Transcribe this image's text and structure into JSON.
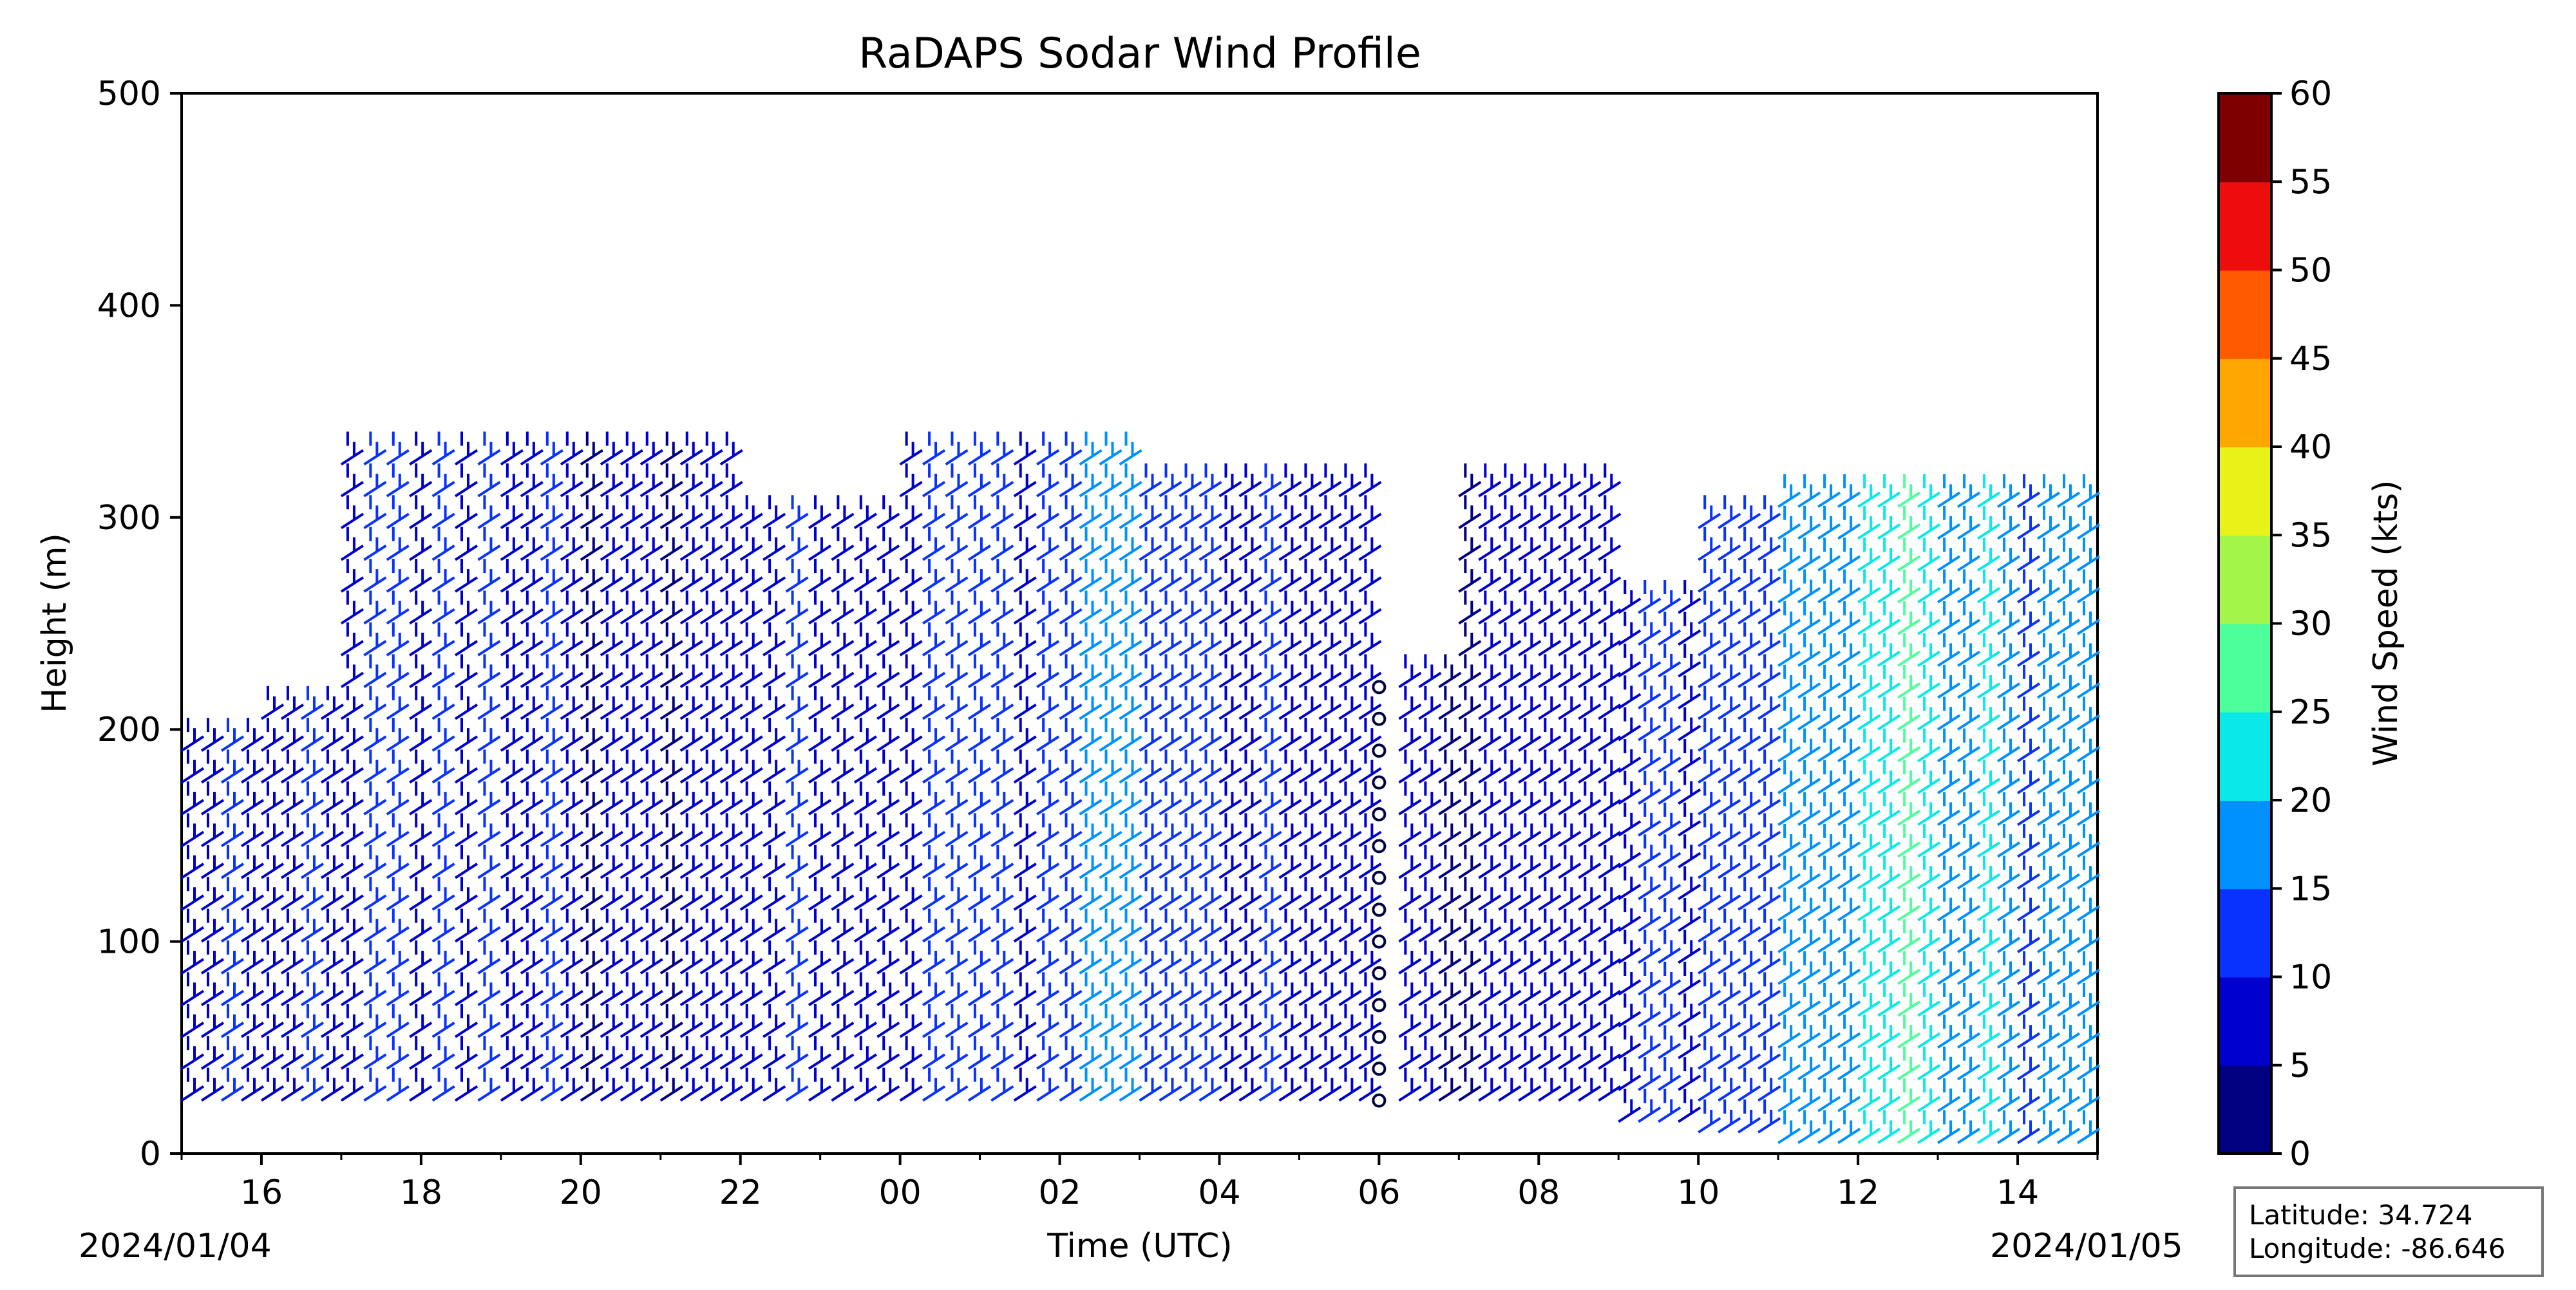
{
  "chart_data": {
    "type": "scatter",
    "title": "RaDAPS Sodar Wind Profile",
    "xlabel": "Time (UTC)",
    "ylabel": "Height (m)",
    "xlim": [
      "2024-01-04 15:00",
      "2024-01-05 15:00"
    ],
    "ylim": [
      0,
      500
    ],
    "x_tick_labels": [
      "16",
      "18",
      "20",
      "22",
      "00",
      "02",
      "04",
      "06",
      "08",
      "10",
      "12",
      "14"
    ],
    "y_ticks": [
      0,
      100,
      200,
      300,
      400,
      500
    ],
    "start_date_label": "2024/01/04",
    "end_date_label": "2024/01/05",
    "colorbar": {
      "label": "Wind Speed (kts)",
      "ticks": [
        0,
        5,
        10,
        15,
        20,
        25,
        30,
        35,
        40,
        45,
        50,
        55,
        60
      ],
      "colors": [
        "#000080",
        "#0000cd",
        "#0a32ff",
        "#0090ff",
        "#0ae8e8",
        "#4dff9a",
        "#a4f54a",
        "#e8f218",
        "#ffa600",
        "#ff5a00",
        "#ee0d0d",
        "#7f0000"
      ]
    },
    "location": {
      "latitude_label": "Latitude: 34.724",
      "longitude_label": "Longitude: -86.646"
    },
    "grid": false,
    "legend": "none",
    "series": [
      {
        "x": "2024-01-04 15:00",
        "height_min": 25,
        "height_max": 200,
        "speed_kts": 8
      },
      {
        "x": "2024-01-04 16:00",
        "height_min": 25,
        "height_max": 210,
        "speed_kts": 9
      },
      {
        "x": "2024-01-04 17:00",
        "height_min": 25,
        "height_max": 325,
        "speed_kts": 10
      },
      {
        "x": "2024-01-04 19:00",
        "height_min": 25,
        "height_max": 325,
        "speed_kts": 9
      },
      {
        "x": "2024-01-04 20:00",
        "height_min": 25,
        "height_max": 330,
        "speed_kts": 6
      },
      {
        "x": "2024-01-04 21:00",
        "height_min": 25,
        "height_max": 330,
        "speed_kts": 6
      },
      {
        "x": "2024-01-04 22:00",
        "height_min": 25,
        "height_max": 300,
        "speed_kts": 8
      },
      {
        "x": "2024-01-05 00:00",
        "height_min": 25,
        "height_max": 325,
        "speed_kts": 11
      },
      {
        "x": "2024-01-05 02:00",
        "height_min": 25,
        "height_max": 325,
        "speed_kts": 16
      },
      {
        "x": "2024-01-05 03:00",
        "height_min": 25,
        "height_max": 320,
        "speed_kts": 12
      },
      {
        "x": "2024-01-05 04:00",
        "height_min": 25,
        "height_max": 310,
        "speed_kts": 8
      },
      {
        "x": "2024-01-05 05:00",
        "height_min": 25,
        "height_max": 310,
        "speed_kts": 7
      },
      {
        "x": "2024-01-05 06:00",
        "height_min": 25,
        "height_max": 225,
        "speed_kts": 5
      },
      {
        "x": "2024-01-05 07:00",
        "height_min": 25,
        "height_max": 310,
        "speed_kts": 6
      },
      {
        "x": "2024-01-05 08:00",
        "height_min": 25,
        "height_max": 310,
        "speed_kts": 7
      },
      {
        "x": "2024-01-05 09:00",
        "height_min": 15,
        "height_max": 260,
        "speed_kts": 10
      },
      {
        "x": "2024-01-05 10:00",
        "height_min": 10,
        "height_max": 300,
        "speed_kts": 12
      },
      {
        "x": "2024-01-05 11:00",
        "height_min": 5,
        "height_max": 310,
        "speed_kts": 17
      },
      {
        "x": "2024-01-05 12:00",
        "height_min": 5,
        "height_max": 310,
        "speed_kts": 24
      },
      {
        "x": "2024-01-05 13:00",
        "height_min": 5,
        "height_max": 310,
        "speed_kts": 18
      },
      {
        "x": "2024-01-05 14:00",
        "height_min": 5,
        "height_max": 310,
        "speed_kts": 16
      }
    ]
  }
}
